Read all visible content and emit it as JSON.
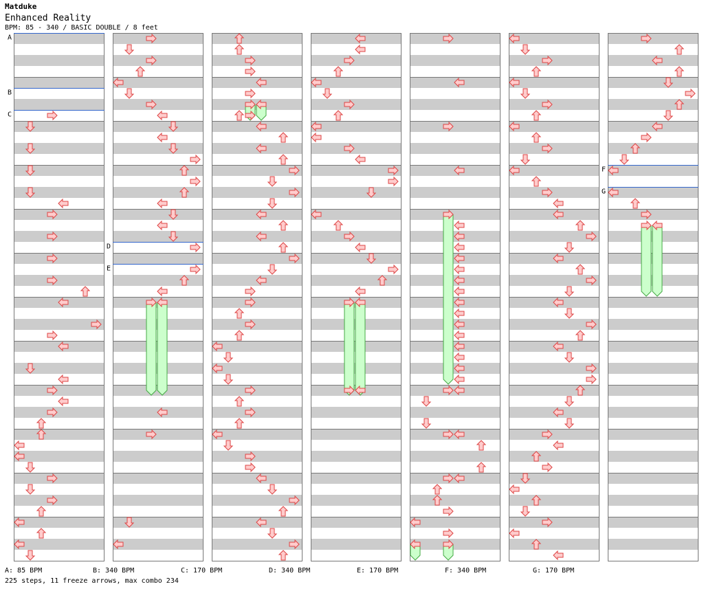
{
  "header": {
    "artist": "Matduke",
    "title": "Enhanced Reality",
    "subtitle": "BPM: 85 - 340 / BASIC DOUBLE / 8 feet"
  },
  "bpm_legend": [
    {
      "text": "A: 85 BPM"
    },
    {
      "text": "B: 340 BPM"
    },
    {
      "text": "C: 170 BPM"
    },
    {
      "text": "D: 340 BPM"
    },
    {
      "text": "E: 170 BPM"
    },
    {
      "text": "F: 340 BPM"
    },
    {
      "text": "G: 170 BPM"
    }
  ],
  "stats": "225 steps, 11 freeze arrows, max combo 234",
  "colors": {
    "stripe_gray": "#cccccc",
    "arrow_fill": "#ffcccc",
    "arrow_stroke": "#dd4444",
    "freeze_fill": "#ccffcc",
    "freeze_stroke": "#44aa44",
    "bpm_line": "#3366cc"
  },
  "chart_data": {
    "type": "step-chart",
    "columns": 7,
    "lanes": [
      "L",
      "D",
      "U",
      "R",
      "L",
      "D",
      "U",
      "R"
    ],
    "rows_per_column": 48,
    "bpm_changes": [
      {
        "label": "A",
        "column": 0,
        "row": 0
      },
      {
        "label": "B",
        "column": 0,
        "row": 5
      },
      {
        "label": "C",
        "column": 0,
        "row": 7
      },
      {
        "label": "D",
        "column": 1,
        "row": 19
      },
      {
        "label": "E",
        "column": 1,
        "row": 21
      },
      {
        "label": "F",
        "column": 6,
        "row": 12
      },
      {
        "label": "G",
        "column": 6,
        "row": 14
      }
    ],
    "notes": [
      [
        [
          7,
          3
        ],
        [
          8,
          1
        ],
        [
          10,
          1
        ],
        [
          12,
          1
        ],
        [
          14,
          1
        ],
        [
          15,
          4
        ],
        [
          16,
          3
        ],
        [
          18,
          3
        ],
        [
          20,
          3
        ],
        [
          22,
          3
        ],
        [
          23,
          6
        ],
        [
          24,
          4
        ],
        [
          26,
          7
        ],
        [
          27,
          3
        ],
        [
          28,
          4
        ],
        [
          30,
          1
        ],
        [
          31,
          4
        ],
        [
          32,
          3
        ],
        [
          33,
          4
        ],
        [
          34,
          3
        ],
        [
          35,
          2
        ],
        [
          36,
          2
        ],
        [
          37,
          0
        ],
        [
          38,
          0
        ],
        [
          39,
          1
        ],
        [
          40,
          3
        ],
        [
          41,
          1
        ],
        [
          42,
          3
        ],
        [
          43,
          2
        ],
        [
          44,
          0
        ],
        [
          45,
          2
        ],
        [
          46,
          0
        ],
        [
          47,
          1
        ]
      ],
      [
        [
          0,
          3
        ],
        [
          1,
          1
        ],
        [
          2,
          3
        ],
        [
          3,
          2
        ],
        [
          4,
          0
        ],
        [
          5,
          1
        ],
        [
          6,
          3
        ],
        [
          7,
          4
        ],
        [
          8,
          5
        ],
        [
          9,
          4
        ],
        [
          10,
          5
        ],
        [
          11,
          7
        ],
        [
          12,
          6
        ],
        [
          13,
          7
        ],
        [
          14,
          6
        ],
        [
          15,
          4
        ],
        [
          16,
          5
        ],
        [
          17,
          4
        ],
        [
          18,
          5
        ],
        [
          19,
          7
        ],
        [
          21,
          7
        ],
        [
          22,
          6
        ],
        [
          23,
          4
        ],
        [
          24,
          3
        ],
        [
          24,
          4
        ],
        [
          34,
          4
        ],
        [
          36,
          3
        ],
        [
          44,
          1
        ],
        [
          46,
          0
        ]
      ],
      [
        [
          0,
          2
        ],
        [
          1,
          2
        ],
        [
          2,
          3
        ],
        [
          3,
          3
        ],
        [
          4,
          4
        ],
        [
          5,
          3
        ],
        [
          6,
          3
        ],
        [
          6,
          4
        ],
        [
          7,
          2
        ],
        [
          7,
          3
        ],
        [
          8,
          4
        ],
        [
          9,
          6
        ],
        [
          10,
          4
        ],
        [
          11,
          6
        ],
        [
          12,
          7
        ],
        [
          13,
          5
        ],
        [
          14,
          7
        ],
        [
          15,
          5
        ],
        [
          16,
          4
        ],
        [
          17,
          6
        ],
        [
          18,
          4
        ],
        [
          19,
          6
        ],
        [
          20,
          7
        ],
        [
          21,
          5
        ],
        [
          22,
          4
        ],
        [
          23,
          3
        ],
        [
          24,
          3
        ],
        [
          25,
          2
        ],
        [
          26,
          3
        ],
        [
          27,
          2
        ],
        [
          28,
          0
        ],
        [
          29,
          1
        ],
        [
          30,
          0
        ],
        [
          31,
          1
        ],
        [
          32,
          3
        ],
        [
          33,
          2
        ],
        [
          34,
          3
        ],
        [
          35,
          2
        ],
        [
          36,
          0
        ],
        [
          37,
          1
        ],
        [
          38,
          3
        ],
        [
          39,
          3
        ],
        [
          40,
          4
        ],
        [
          41,
          5
        ],
        [
          42,
          7
        ],
        [
          43,
          6
        ],
        [
          44,
          4
        ],
        [
          45,
          5
        ],
        [
          46,
          7
        ],
        [
          47,
          6
        ]
      ],
      [
        [
          0,
          4
        ],
        [
          1,
          4
        ],
        [
          2,
          3
        ],
        [
          3,
          2
        ],
        [
          4,
          0
        ],
        [
          5,
          1
        ],
        [
          6,
          3
        ],
        [
          7,
          2
        ],
        [
          8,
          0
        ],
        [
          9,
          0
        ],
        [
          10,
          3
        ],
        [
          11,
          4
        ],
        [
          12,
          7
        ],
        [
          13,
          7
        ],
        [
          14,
          5
        ],
        [
          16,
          0
        ],
        [
          17,
          2
        ],
        [
          18,
          3
        ],
        [
          19,
          4
        ],
        [
          20,
          5
        ],
        [
          21,
          7
        ],
        [
          22,
          6
        ],
        [
          23,
          4
        ],
        [
          24,
          3
        ],
        [
          24,
          4
        ],
        [
          32,
          3
        ],
        [
          32,
          4
        ]
      ],
      [
        [
          0,
          3
        ],
        [
          4,
          4
        ],
        [
          8,
          3
        ],
        [
          12,
          4
        ],
        [
          16,
          3
        ],
        [
          17,
          4
        ],
        [
          18,
          4
        ],
        [
          19,
          4
        ],
        [
          20,
          4
        ],
        [
          21,
          4
        ],
        [
          22,
          4
        ],
        [
          23,
          4
        ],
        [
          24,
          4
        ],
        [
          25,
          4
        ],
        [
          26,
          4
        ],
        [
          27,
          4
        ],
        [
          28,
          4
        ],
        [
          29,
          4
        ],
        [
          30,
          4
        ],
        [
          31,
          4
        ],
        [
          32,
          3
        ],
        [
          32,
          4
        ],
        [
          33,
          1
        ],
        [
          35,
          1
        ],
        [
          36,
          3
        ],
        [
          36,
          4
        ],
        [
          37,
          6
        ],
        [
          39,
          6
        ],
        [
          40,
          3
        ],
        [
          40,
          4
        ],
        [
          41,
          2
        ],
        [
          42,
          2
        ],
        [
          43,
          3
        ],
        [
          44,
          0
        ],
        [
          45,
          3
        ],
        [
          46,
          0
        ],
        [
          46,
          3
        ]
      ],
      [
        [
          0,
          0
        ],
        [
          1,
          1
        ],
        [
          2,
          3
        ],
        [
          3,
          2
        ],
        [
          4,
          0
        ],
        [
          5,
          1
        ],
        [
          6,
          3
        ],
        [
          7,
          2
        ],
        [
          8,
          0
        ],
        [
          9,
          2
        ],
        [
          10,
          3
        ],
        [
          11,
          1
        ],
        [
          12,
          0
        ],
        [
          13,
          2
        ],
        [
          14,
          3
        ],
        [
          15,
          4
        ],
        [
          16,
          4
        ],
        [
          17,
          6
        ],
        [
          18,
          7
        ],
        [
          19,
          5
        ],
        [
          20,
          4
        ],
        [
          21,
          6
        ],
        [
          22,
          7
        ],
        [
          23,
          5
        ],
        [
          24,
          4
        ],
        [
          25,
          5
        ],
        [
          26,
          7
        ],
        [
          27,
          6
        ],
        [
          28,
          4
        ],
        [
          29,
          5
        ],
        [
          30,
          7
        ],
        [
          31,
          7
        ],
        [
          32,
          6
        ],
        [
          33,
          5
        ],
        [
          34,
          4
        ],
        [
          35,
          5
        ],
        [
          36,
          3
        ],
        [
          37,
          4
        ],
        [
          38,
          2
        ],
        [
          39,
          3
        ],
        [
          40,
          1
        ],
        [
          41,
          0
        ],
        [
          42,
          2
        ],
        [
          43,
          1
        ],
        [
          44,
          3
        ],
        [
          45,
          0
        ],
        [
          46,
          2
        ],
        [
          47,
          4
        ]
      ],
      [
        [
          0,
          3
        ],
        [
          1,
          6
        ],
        [
          2,
          4
        ],
        [
          3,
          6
        ],
        [
          4,
          5
        ],
        [
          5,
          7
        ],
        [
          6,
          6
        ],
        [
          7,
          5
        ],
        [
          8,
          4
        ],
        [
          9,
          3
        ],
        [
          10,
          2
        ],
        [
          11,
          1
        ],
        [
          12,
          0
        ],
        [
          14,
          0
        ],
        [
          15,
          2
        ],
        [
          16,
          3
        ],
        [
          17,
          3
        ],
        [
          17,
          4
        ]
      ]
    ],
    "freezes": [
      {
        "column": 1,
        "lane": 3,
        "start": 24,
        "end": 32
      },
      {
        "column": 1,
        "lane": 4,
        "start": 24,
        "end": 32
      },
      {
        "column": 2,
        "lane": 3,
        "start": 6,
        "end": 7
      },
      {
        "column": 2,
        "lane": 4,
        "start": 6,
        "end": 7
      },
      {
        "column": 3,
        "lane": 3,
        "start": 24,
        "end": 32
      },
      {
        "column": 3,
        "lane": 4,
        "start": 24,
        "end": 32
      },
      {
        "column": 4,
        "lane": 3,
        "start": 16,
        "end": 31
      },
      {
        "column": 4,
        "lane": 0,
        "start": 46,
        "end": 47
      },
      {
        "column": 4,
        "lane": 3,
        "start": 46,
        "end": 47
      },
      {
        "column": 6,
        "lane": 3,
        "start": 17,
        "end": 23
      },
      {
        "column": 6,
        "lane": 4,
        "start": 17,
        "end": 23
      }
    ]
  }
}
